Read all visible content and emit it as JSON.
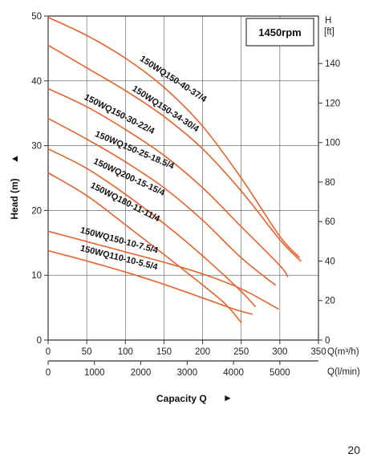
{
  "page_number": "20",
  "chart_data": {
    "type": "line",
    "speed_label": "1450rpm",
    "ylabel": "Head (m)",
    "ylabel_arrow": "▲",
    "xlabel": "Capacity Q",
    "xlabel_arrow": "►",
    "right_axis_label_top": "H",
    "right_axis_label_unit": "[ft]",
    "x_unit_m3h": "Q(m³/h)",
    "x_unit_lmin": "Q(l/min)",
    "xlim": [
      0,
      350
    ],
    "ylim": [
      0,
      50
    ],
    "x_ticks": [
      0,
      50,
      100,
      150,
      200,
      250,
      300,
      350
    ],
    "y_ticks": [
      0,
      10,
      20,
      30,
      40,
      50
    ],
    "ft_ticks": [
      0,
      20,
      40,
      60,
      80,
      100,
      120,
      140
    ],
    "lmin_ticks": [
      0,
      1000,
      2000,
      3000,
      4000,
      5000
    ],
    "grid": true,
    "series_color": "#e8622a",
    "series": [
      {
        "name": "150WQ150-40-37/4",
        "x": [
          0,
          50,
          100,
          150,
          200,
          250,
          300,
          325
        ],
        "y": [
          49.8,
          47.0,
          43.5,
          39.0,
          33.0,
          25.0,
          16.0,
          12.8
        ]
      },
      {
        "name": "150WQ150-34-30/4",
        "x": [
          0,
          50,
          100,
          150,
          200,
          250,
          300,
          327
        ],
        "y": [
          45.5,
          42.0,
          38.5,
          34.5,
          29.5,
          23.0,
          15.5,
          12.2
        ]
      },
      {
        "name": "150WQ150-30-22/4",
        "x": [
          0,
          50,
          100,
          150,
          200,
          250,
          300,
          310
        ],
        "y": [
          38.8,
          36.0,
          32.5,
          28.5,
          23.5,
          17.5,
          11.5,
          9.8
        ]
      },
      {
        "name": "150WQ150-25-18.5/4",
        "x": [
          0,
          50,
          100,
          150,
          200,
          250,
          294
        ],
        "y": [
          34.2,
          31.0,
          27.5,
          23.5,
          18.5,
          12.7,
          8.5
        ]
      },
      {
        "name": "150WQ200-15-15/4",
        "x": [
          0,
          50,
          100,
          150,
          200,
          250,
          268
        ],
        "y": [
          29.5,
          26.5,
          22.5,
          18.0,
          13.0,
          7.5,
          5.2
        ]
      },
      {
        "name": "150WQ180-11-11/4",
        "x": [
          0,
          50,
          100,
          150,
          200,
          230,
          250
        ],
        "y": [
          25.8,
          22.3,
          17.8,
          13.2,
          8.5,
          5.5,
          2.7
        ]
      },
      {
        "name": "150WQ150-10-7.5/4",
        "x": [
          0,
          50,
          100,
          150,
          200,
          250,
          298
        ],
        "y": [
          16.8,
          15.2,
          13.6,
          12.0,
          10.2,
          7.9,
          4.8
        ]
      },
      {
        "name": "150WQ110-10-5.5/4",
        "x": [
          0,
          50,
          100,
          150,
          200,
          240,
          264
        ],
        "y": [
          13.8,
          12.2,
          10.5,
          8.6,
          6.5,
          4.8,
          4.0
        ]
      }
    ],
    "label_anchor": [
      {
        "x": 118,
        "y": 43.2,
        "angle": 33
      },
      {
        "x": 108,
        "y": 38.6,
        "angle": 33
      },
      {
        "x": 46,
        "y": 37.2,
        "angle": 27
      },
      {
        "x": 60,
        "y": 31.5,
        "angle": 23
      },
      {
        "x": 58,
        "y": 27.3,
        "angle": 25
      },
      {
        "x": 54,
        "y": 23.6,
        "angle": 27
      },
      {
        "x": 41,
        "y": 16.6,
        "angle": 15
      },
      {
        "x": 41,
        "y": 13.8,
        "angle": 14
      }
    ]
  }
}
